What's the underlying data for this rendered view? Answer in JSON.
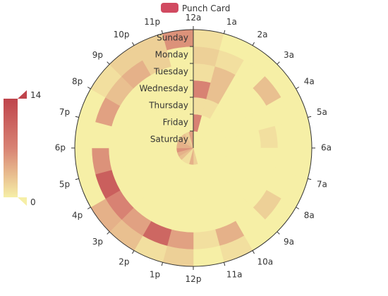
{
  "chart_data": {
    "type": "heatmap",
    "coordinate_system": "polar",
    "legend": [
      "Punch Card"
    ],
    "visual_map": {
      "min": 0,
      "max": 14,
      "min_label": "0",
      "max_label": "14",
      "colors": [
        "#f6efa6",
        "#d88273",
        "#bf444c"
      ],
      "position": "left"
    },
    "hours": [
      "12a",
      "1a",
      "2a",
      "3a",
      "4a",
      "5a",
      "6a",
      "7a",
      "8a",
      "9a",
      "10a",
      "11a",
      "12p",
      "1p",
      "2p",
      "3p",
      "4p",
      "5p",
      "6p",
      "7p",
      "8p",
      "9p",
      "10p",
      "11p"
    ],
    "days": [
      "Saturday",
      "Friday",
      "Thursday",
      "Wednesday",
      "Tuesday",
      "Monday",
      "Sunday"
    ],
    "values": [
      [
        0,
        0,
        0,
        0,
        0,
        0,
        0,
        0,
        0,
        0,
        0,
        2,
        4,
        1,
        1,
        3,
        4,
        6,
        4,
        4,
        3,
        3,
        2,
        5
      ],
      [
        7,
        0,
        0,
        0,
        0,
        0,
        0,
        0,
        0,
        0,
        0,
        0,
        0,
        0,
        0,
        0,
        0,
        0,
        0,
        0,
        0,
        0,
        0,
        0
      ],
      [
        1,
        1,
        0,
        0,
        0,
        0,
        0,
        0,
        0,
        0,
        0,
        0,
        0,
        0,
        0,
        0,
        0,
        0,
        0,
        0,
        0,
        0,
        0,
        0
      ],
      [
        7,
        3,
        0,
        0,
        0,
        0,
        0,
        0,
        0,
        0,
        0,
        0,
        0,
        0,
        0,
        0,
        0,
        0,
        0,
        0,
        0,
        0,
        0,
        0
      ],
      [
        1,
        3,
        0,
        0,
        0,
        1,
        0,
        0,
        0,
        0,
        0,
        0,
        0,
        0,
        0,
        0,
        0,
        0,
        0,
        0,
        0,
        0,
        0,
        0
      ],
      [
        2,
        1,
        0,
        3,
        0,
        0,
        0,
        0,
        2,
        0,
        4,
        1,
        5,
        10,
        5,
        7,
        11,
        6,
        0,
        5,
        3,
        4,
        2,
        0
      ],
      [
        1,
        0,
        0,
        0,
        0,
        0,
        0,
        0,
        0,
        0,
        1,
        0,
        2,
        1,
        3,
        4,
        0,
        0,
        0,
        0,
        1,
        2,
        2,
        6
      ]
    ]
  }
}
